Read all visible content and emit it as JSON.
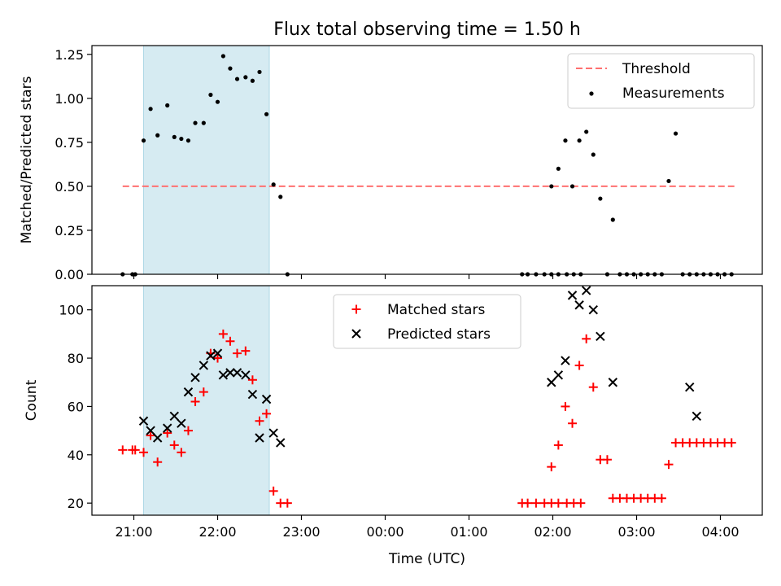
{
  "figure_title": "Flux total observing time = 1.50 h",
  "colors": {
    "threshold": "#ff7070",
    "measurements": "#000000",
    "matched": "#ff0000",
    "predicted": "#000000",
    "span": "#add8e6"
  },
  "chart_data": [
    {
      "type": "scatter",
      "title": "Flux total observing time = 1.50 h",
      "xlabel": "",
      "ylabel": "Matched/Predicted stars",
      "ylim": [
        0,
        1.3
      ],
      "yticks": [
        0.0,
        0.25,
        0.5,
        0.75,
        1.0,
        1.25
      ],
      "yticklabels": [
        "0.00",
        "0.25",
        "0.50",
        "0.75",
        "1.00",
        "1.25"
      ],
      "legend_position": "upper right",
      "shaded_span": [
        "21:07",
        "22:37"
      ],
      "series": [
        {
          "name": "Threshold",
          "kind": "line",
          "style": "dashed",
          "x": [
            "20:52",
            "04:10"
          ],
          "y": [
            0.5,
            0.5
          ]
        },
        {
          "name": "Measurements",
          "kind": "points",
          "x": [
            "20:52",
            "20:59",
            "21:01",
            "21:07",
            "21:12",
            "21:17",
            "21:24",
            "21:29",
            "21:34",
            "21:39",
            "21:44",
            "21:50",
            "21:55",
            "22:00",
            "22:04",
            "22:09",
            "22:14",
            "22:20",
            "22:25",
            "22:30",
            "22:35",
            "22:40",
            "22:45",
            "22:50",
            "01:38",
            "01:42",
            "01:48",
            "01:54",
            "01:59",
            "02:04",
            "02:10",
            "02:15",
            "02:20",
            "01:59",
            "02:04",
            "02:09",
            "02:14",
            "02:19",
            "02:24",
            "02:29",
            "02:34",
            "02:39",
            "02:43",
            "02:48",
            "02:53",
            "02:58",
            "03:03",
            "03:08",
            "03:13",
            "03:18",
            "03:23",
            "03:28",
            "03:33",
            "03:38",
            "03:43",
            "03:48",
            "03:53",
            "03:58",
            "04:03",
            "04:08"
          ],
          "y": [
            0.0,
            0.0,
            0.0,
            0.76,
            0.94,
            0.79,
            0.96,
            0.78,
            0.77,
            0.76,
            0.86,
            0.86,
            1.02,
            0.98,
            1.24,
            1.17,
            1.11,
            1.12,
            1.1,
            1.15,
            0.91,
            0.51,
            0.44,
            0.0,
            0.0,
            0.0,
            0.0,
            0.0,
            0.0,
            0.0,
            0.0,
            0.0,
            0.0,
            0.5,
            0.6,
            0.76,
            0.5,
            0.76,
            0.81,
            0.68,
            0.43,
            0.0,
            0.31,
            0.0,
            0.0,
            0.0,
            0.0,
            0.0,
            0.0,
            0.0,
            0.53,
            0.8,
            0.0,
            0.0,
            0.0,
            0.0,
            0.0,
            0.0,
            0.0,
            0.0
          ]
        }
      ]
    },
    {
      "type": "scatter",
      "xlabel": "Time (UTC)",
      "ylabel": "Count",
      "xlim": [
        "20:30",
        "04:30"
      ],
      "xticks": [
        "21:00",
        "22:00",
        "23:00",
        "00:00",
        "01:00",
        "02:00",
        "03:00",
        "04:00"
      ],
      "ylim": [
        15,
        110
      ],
      "yticks": [
        20,
        40,
        60,
        80,
        100
      ],
      "legend_position": "upper center",
      "shaded_span": [
        "21:07",
        "22:37"
      ],
      "series": [
        {
          "name": "Matched stars",
          "marker": "+",
          "x": [
            "20:52",
            "20:59",
            "21:01",
            "21:07",
            "21:12",
            "21:17",
            "21:24",
            "21:29",
            "21:34",
            "21:39",
            "21:44",
            "21:50",
            "21:55",
            "22:00",
            "22:04",
            "22:09",
            "22:14",
            "22:20",
            "22:25",
            "22:30",
            "22:35",
            "22:40",
            "22:45",
            "22:50",
            "01:38",
            "01:42",
            "01:48",
            "01:54",
            "01:59",
            "02:04",
            "02:10",
            "02:15",
            "02:20",
            "01:59",
            "02:04",
            "02:09",
            "02:14",
            "02:19",
            "02:24",
            "02:29",
            "02:34",
            "02:39",
            "02:43",
            "02:48",
            "02:53",
            "02:58",
            "03:03",
            "03:08",
            "03:13",
            "03:18",
            "03:23",
            "03:28",
            "03:33",
            "03:38",
            "03:43",
            "03:48",
            "03:53",
            "03:58",
            "04:03",
            "04:08"
          ],
          "y": [
            42,
            42,
            42,
            41,
            48,
            37,
            49,
            44,
            41,
            50,
            62,
            66,
            82,
            80,
            90,
            87,
            82,
            83,
            71,
            54,
            57,
            25,
            20,
            20,
            20,
            20,
            20,
            20,
            20,
            20,
            20,
            20,
            20,
            35,
            44,
            60,
            53,
            77,
            88,
            68,
            38,
            38,
            22,
            22,
            22,
            22,
            22,
            22,
            22,
            22,
            36,
            45,
            45,
            45,
            45,
            45,
            45,
            45,
            45,
            45
          ]
        },
        {
          "name": "Predicted stars",
          "marker": "x",
          "x": [
            "21:07",
            "21:12",
            "21:17",
            "21:24",
            "21:29",
            "21:34",
            "21:39",
            "21:44",
            "21:50",
            "21:55",
            "22:00",
            "22:04",
            "22:09",
            "22:14",
            "22:20",
            "22:25",
            "22:30",
            "22:35",
            "22:40",
            "22:45",
            "01:59",
            "02:04",
            "02:09",
            "02:14",
            "02:19",
            "02:24",
            "02:29",
            "02:34",
            "02:43",
            "03:38",
            "03:43"
          ],
          "y": [
            54,
            50,
            47,
            51,
            56,
            53,
            66,
            72,
            77,
            81,
            82,
            73,
            74,
            74,
            73,
            65,
            47,
            63,
            49,
            45,
            70,
            73,
            79,
            106,
            102,
            108,
            100,
            89,
            70,
            68,
            56
          ]
        }
      ]
    }
  ]
}
